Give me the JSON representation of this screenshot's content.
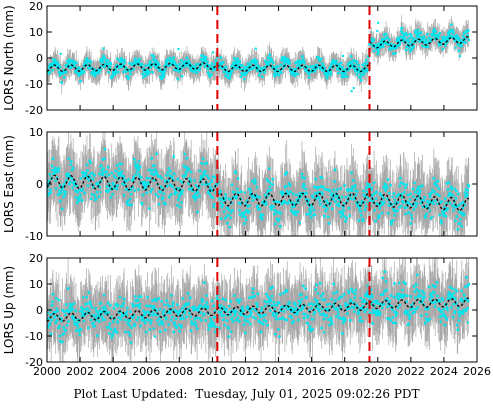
{
  "footer": {
    "label": "Plot Last Updated:",
    "value": "Tuesday, July 01, 2025 09:02:26 PDT"
  },
  "colors": {
    "error_bars": "#a8a8a8",
    "scatter": "#00e5ee",
    "model": "#000000",
    "events": "#e00000",
    "outliers": "#d00000",
    "frame": "#000000",
    "background": "#ffffff"
  },
  "chart_data": [
    {
      "type": "scatter",
      "ylabel": "LORS North (mm)",
      "xlim": [
        2000,
        2026
      ],
      "ylim": [
        -20,
        20
      ],
      "xticks": [
        2000,
        2002,
        2004,
        2006,
        2008,
        2010,
        2012,
        2014,
        2016,
        2018,
        2020,
        2022,
        2024,
        2026
      ],
      "yticks": [
        -20,
        -10,
        0,
        10,
        20
      ],
      "show_x_tick_labels": false,
      "grid": false,
      "event_lines": [
        2010.3,
        2019.5
      ],
      "series": [
        {
          "name": "",
          "kind": "daily-positions-with-error-bars",
          "segments": [
            {
              "x": [
                2000.0,
                2002.0,
                2004.0,
                2006.0,
                2008.0,
                2010.3
              ],
              "y": [
                -4,
                -4,
                -3.5,
                -3.5,
                -3,
                -3
              ]
            },
            {
              "x": [
                2010.3,
                2012.0,
                2014.0,
                2016.0,
                2018.0,
                2019.5
              ],
              "y": [
                -4,
                -4,
                -3.5,
                -3.5,
                -4,
                -4
              ]
            },
            {
              "x": [
                2019.5,
                2021.0,
                2022.0,
                2023.0,
                2024.0,
                2025.5
              ],
              "y": [
                5,
                6,
                7,
                7.5,
                8,
                7
              ]
            }
          ],
          "annual_amplitude": 2,
          "error_bar_half_height": 3.5
        },
        {
          "name": "",
          "kind": "model-fit",
          "segments": [
            {
              "x": [
                2000.0,
                2010.3
              ],
              "y": [
                -4,
                -3
              ]
            },
            {
              "x": [
                2010.3,
                2019.5
              ],
              "y": [
                -4,
                -4
              ]
            },
            {
              "x": [
                2019.5,
                2025.5
              ],
              "y": [
                5,
                7
              ]
            }
          ],
          "annual_amplitude": 1.2
        }
      ]
    },
    {
      "type": "scatter",
      "ylabel": "LORS East (mm)",
      "xlim": [
        2000,
        2026
      ],
      "ylim": [
        -10,
        10
      ],
      "xticks": [
        2000,
        2002,
        2004,
        2006,
        2008,
        2010,
        2012,
        2014,
        2016,
        2018,
        2020,
        2022,
        2024,
        2026
      ],
      "yticks": [
        -10,
        0,
        10
      ],
      "show_x_tick_labels": false,
      "grid": false,
      "event_lines": [
        2010.3,
        2019.5
      ],
      "series": [
        {
          "name": "",
          "kind": "daily-positions-with-error-bars",
          "segments": [
            {
              "x": [
                2000.0,
                2002.0,
                2003.5,
                2006.0,
                2008.0,
                2010.3
              ],
              "y": [
                1,
                0,
                1,
                0,
                0,
                0
              ]
            },
            {
              "x": [
                2010.3,
                2012.0,
                2014.0,
                2016.0,
                2018.0,
                2019.5
              ],
              "y": [
                -3,
                -3,
                -3,
                -3,
                -3,
                -3
              ]
            },
            {
              "x": [
                2019.5,
                2021.0,
                2022.0,
                2023.0,
                2024.0,
                2025.5
              ],
              "y": [
                -3,
                -3,
                -3,
                -3,
                -3.5,
                -4
              ]
            }
          ],
          "annual_amplitude": 1.8,
          "error_bar_half_height": 4.5
        },
        {
          "name": "",
          "kind": "model-fit",
          "segments": [
            {
              "x": [
                2000.0,
                2010.3
              ],
              "y": [
                0.5,
                -0.3
              ]
            },
            {
              "x": [
                2010.3,
                2019.5
              ],
              "y": [
                -3,
                -3
              ]
            },
            {
              "x": [
                2019.5,
                2025.5
              ],
              "y": [
                -3,
                -4
              ]
            }
          ],
          "annual_amplitude": 1.2
        }
      ]
    },
    {
      "type": "scatter",
      "ylabel": "LORS Up (mm)",
      "xlim": [
        2000,
        2026
      ],
      "ylim": [
        -20,
        20
      ],
      "xticks": [
        2000,
        2002,
        2004,
        2006,
        2008,
        2010,
        2012,
        2014,
        2016,
        2018,
        2020,
        2022,
        2024,
        2026
      ],
      "yticks": [
        -20,
        -10,
        0,
        10,
        20
      ],
      "show_x_tick_labels": true,
      "grid": false,
      "event_lines": [
        2010.3,
        2019.5
      ],
      "series": [
        {
          "name": "",
          "kind": "daily-positions-with-error-bars",
          "segments": [
            {
              "x": [
                2000.0,
                2004.0,
                2008.0,
                2010.3
              ],
              "y": [
                -3,
                -2,
                -1,
                -1
              ]
            },
            {
              "x": [
                2010.3,
                2014.0,
                2018.0,
                2019.5
              ],
              "y": [
                -1,
                0,
                1,
                1.5
              ]
            },
            {
              "x": [
                2019.5,
                2022.0,
                2024.0,
                2025.5
              ],
              "y": [
                2,
                3,
                3,
                3
              ]
            }
          ],
          "annual_amplitude": 3,
          "error_bar_half_height": 9
        },
        {
          "name": "",
          "kind": "model-fit",
          "segments": [
            {
              "x": [
                2000.0,
                2010.3
              ],
              "y": [
                -3,
                -0.5
              ]
            },
            {
              "x": [
                2010.3,
                2019.5
              ],
              "y": [
                -0.5,
                1.5
              ]
            },
            {
              "x": [
                2019.5,
                2025.5
              ],
              "y": [
                2,
                3
              ]
            }
          ],
          "annual_amplitude": 1.5
        }
      ]
    }
  ]
}
